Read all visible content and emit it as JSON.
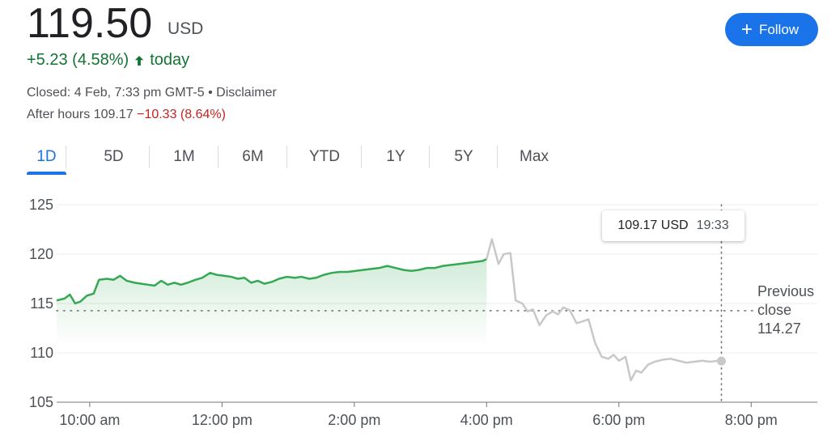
{
  "quote": {
    "price": "119.50",
    "currency": "USD",
    "change_text": "+5.23 (4.58%)",
    "change_period": "today",
    "closed_text": "Closed: 4 Feb, 7:33 pm GMT-5 • Disclaimer",
    "after_hours_label": "After hours 109.17",
    "after_hours_change": "−10.33 (8.64%)"
  },
  "follow_button": {
    "label": "Follow"
  },
  "tabs": [
    {
      "label": "1D",
      "active": true
    },
    {
      "label": "5D"
    },
    {
      "label": "1M"
    },
    {
      "label": "6M"
    },
    {
      "label": "YTD"
    },
    {
      "label": "1Y"
    },
    {
      "label": "5Y"
    },
    {
      "label": "Max"
    }
  ],
  "tooltip": {
    "value": "109.17 USD",
    "time": "19:33"
  },
  "previous_close": {
    "line1": "Previous",
    "line2": "close",
    "value": "114.27"
  },
  "colors": {
    "up": "#34a853",
    "after_hours": "#c8c8c8",
    "accent": "#1a73e8",
    "down": "#c5221f"
  },
  "icons": {
    "change_arrow": "arrow-up-icon",
    "follow": "plus-icon"
  },
  "chart_data": {
    "type": "line",
    "x_unit": "hour of day",
    "xlim": [
      9.5,
      21.0
    ],
    "ylim": [
      105,
      125
    ],
    "xticks": [
      {
        "x": 10,
        "label": "10:00 am"
      },
      {
        "x": 12,
        "label": "12:00 pm"
      },
      {
        "x": 14,
        "label": "2:00 pm"
      },
      {
        "x": 16,
        "label": "4:00 pm"
      },
      {
        "x": 18,
        "label": "6:00 pm"
      },
      {
        "x": 20,
        "label": "8:00 pm"
      }
    ],
    "yticks": [
      105,
      110,
      115,
      120,
      125
    ],
    "previous_close": 114.27,
    "cursor_x": 19.55,
    "series": [
      {
        "session": "regular",
        "x": [
          9.5,
          9.62,
          9.7,
          9.78,
          9.86,
          9.96,
          10.06,
          10.14,
          10.26,
          10.36,
          10.46,
          10.56,
          10.68,
          10.78,
          10.88,
          10.98,
          11.08,
          11.18,
          11.28,
          11.38,
          11.48,
          11.6,
          11.7,
          11.82,
          11.92,
          12.04,
          12.14,
          12.24,
          12.34,
          12.44,
          12.54,
          12.64,
          12.76,
          12.86,
          12.98,
          13.1,
          13.2,
          13.32,
          13.42,
          13.54,
          13.66,
          13.78,
          13.9,
          14.02,
          14.14,
          14.26,
          14.38,
          14.5,
          14.62,
          14.74,
          14.86,
          14.98,
          15.1,
          15.22,
          15.34,
          15.46,
          15.58,
          15.7,
          15.82,
          15.94,
          16.0
        ],
        "y": [
          115.3,
          115.5,
          115.9,
          115.0,
          115.2,
          115.8,
          116.0,
          117.4,
          117.5,
          117.4,
          117.8,
          117.3,
          117.1,
          117.0,
          116.9,
          116.8,
          117.3,
          116.9,
          117.1,
          116.9,
          117.1,
          117.4,
          117.6,
          118.1,
          117.9,
          117.8,
          117.7,
          117.5,
          117.6,
          117.1,
          117.3,
          117.0,
          117.2,
          117.5,
          117.7,
          117.6,
          117.7,
          117.5,
          117.6,
          117.9,
          118.1,
          118.2,
          118.2,
          118.3,
          118.4,
          118.5,
          118.6,
          118.8,
          118.6,
          118.4,
          118.3,
          118.4,
          118.6,
          118.6,
          118.8,
          118.9,
          119.0,
          119.1,
          119.2,
          119.3,
          119.5
        ]
      },
      {
        "session": "after hours",
        "x": [
          16.0,
          16.08,
          16.18,
          16.26,
          16.36,
          16.44,
          16.54,
          16.62,
          16.7,
          16.8,
          16.9,
          17.0,
          17.08,
          17.16,
          17.26,
          17.36,
          17.46,
          17.54,
          17.64,
          17.74,
          17.84,
          17.92,
          18.0,
          18.1,
          18.18,
          18.26,
          18.34,
          18.44,
          18.54,
          18.66,
          18.78,
          18.9,
          19.02,
          19.14,
          19.26,
          19.38,
          19.5,
          19.55
        ],
        "y": [
          119.5,
          121.5,
          119.0,
          120.0,
          120.1,
          115.3,
          115.0,
          114.2,
          114.4,
          112.8,
          113.8,
          114.2,
          113.9,
          114.6,
          114.3,
          113.0,
          113.2,
          113.4,
          111.0,
          109.6,
          109.4,
          109.8,
          109.2,
          109.6,
          107.2,
          108.2,
          108.0,
          108.8,
          109.1,
          109.3,
          109.4,
          109.2,
          109.0,
          109.1,
          109.2,
          109.1,
          109.2,
          109.17
        ]
      }
    ]
  }
}
